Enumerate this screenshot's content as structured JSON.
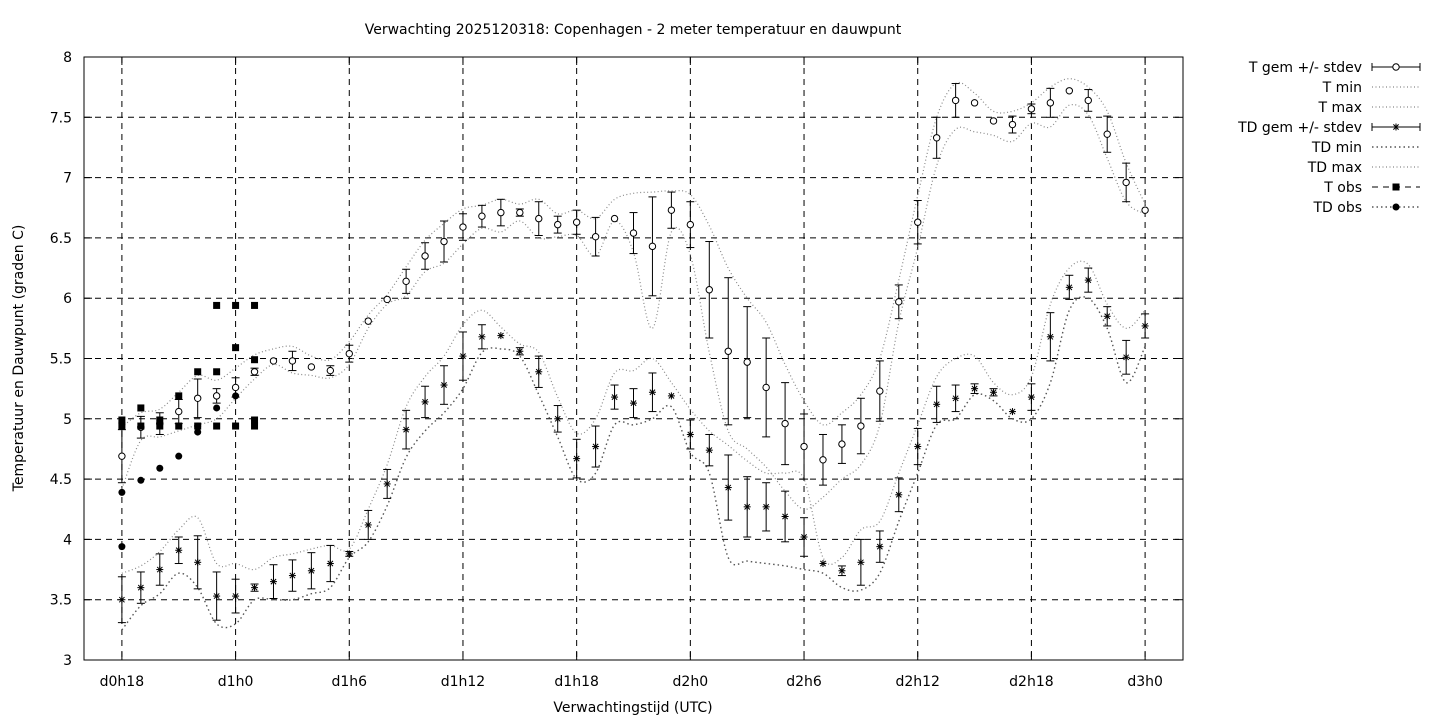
{
  "chart_data": {
    "type": "line",
    "title": "Verwachting 2025120318: Copenhagen - 2 meter temperatuur en dauwpunt",
    "xlabel": "Verwachtingstijd (UTC)",
    "ylabel": "Temperatuur en Dauwpunt (graden C)",
    "x_unit": "hours since d0h18",
    "xlim": [
      -2,
      56
    ],
    "ylim": [
      3,
      8
    ],
    "xticks": [
      {
        "x": 0,
        "label": "d0h18"
      },
      {
        "x": 6,
        "label": "d1h0"
      },
      {
        "x": 12,
        "label": "d1h6"
      },
      {
        "x": 18,
        "label": "d1h12"
      },
      {
        "x": 24,
        "label": "d1h18"
      },
      {
        "x": 30,
        "label": "d2h0"
      },
      {
        "x": 36,
        "label": "d2h6"
      },
      {
        "x": 42,
        "label": "d2h12"
      },
      {
        "x": 48,
        "label": "d2h18"
      },
      {
        "x": 54,
        "label": "d3h0"
      }
    ],
    "yticks": [
      {
        "y": 3,
        "label": "3"
      },
      {
        "y": 3.5,
        "label": "3.5"
      },
      {
        "y": 4,
        "label": "4"
      },
      {
        "y": 4.5,
        "label": "4.5"
      },
      {
        "y": 5,
        "label": "5"
      },
      {
        "y": 5.5,
        "label": "5.5"
      },
      {
        "y": 6,
        "label": "6"
      },
      {
        "y": 6.5,
        "label": "6.5"
      },
      {
        "y": 7,
        "label": "7"
      },
      {
        "y": 7.5,
        "label": "7.5"
      },
      {
        "y": 8,
        "label": "8"
      }
    ],
    "grid": true,
    "legend_position": "outside-right-top",
    "series": [
      {
        "name": "T gem +/- stdev",
        "x": [
          0,
          1,
          2,
          3,
          4,
          5,
          6,
          7,
          8,
          9,
          10,
          11,
          12,
          13,
          14,
          15,
          16,
          17,
          18,
          19,
          20,
          21,
          22,
          23,
          24,
          25,
          26,
          27,
          28,
          29,
          30,
          31,
          32,
          33,
          34,
          35,
          36,
          37,
          38,
          39,
          40,
          41,
          42,
          43,
          44,
          45,
          46,
          47,
          48,
          49,
          50,
          51,
          52,
          53,
          54
        ],
        "mean": [
          4.69,
          4.93,
          4.96,
          5.06,
          5.17,
          5.19,
          5.26,
          5.39,
          5.48,
          5.48,
          5.43,
          5.4,
          5.54,
          5.81,
          5.99,
          6.14,
          6.35,
          6.47,
          6.59,
          6.68,
          6.71,
          6.71,
          6.66,
          6.61,
          6.63,
          6.51,
          6.66,
          6.54,
          6.43,
          6.73,
          6.61,
          6.07,
          5.56,
          5.47,
          5.26,
          4.96,
          4.77,
          4.66,
          4.79,
          4.94,
          5.23,
          5.97,
          6.63,
          7.33,
          7.64,
          7.62,
          7.47,
          7.44,
          7.57,
          7.62,
          7.72,
          7.64,
          7.36,
          6.96,
          6.73
        ],
        "stdev": [
          0.22,
          0.09,
          0.09,
          0.1,
          0.16,
          0.06,
          0.08,
          0.03,
          0.0,
          0.08,
          0.0,
          0.04,
          0.07,
          0.0,
          0.0,
          0.1,
          0.11,
          0.17,
          0.11,
          0.09,
          0.11,
          0.03,
          0.14,
          0.07,
          0.1,
          0.16,
          0.0,
          0.17,
          0.41,
          0.15,
          0.19,
          0.4,
          0.61,
          0.46,
          0.41,
          0.34,
          0.27,
          0.21,
          0.16,
          0.23,
          0.25,
          0.14,
          0.18,
          0.17,
          0.14,
          0.0,
          0.0,
          0.07,
          0.04,
          0.12,
          0.0,
          0.09,
          0.15,
          0.16,
          0.0
        ]
      },
      {
        "name": "T min",
        "x": [
          0,
          1,
          2,
          3,
          4,
          5,
          6,
          7,
          8,
          9,
          10,
          11,
          12,
          13,
          14,
          15,
          16,
          17,
          18,
          19,
          20,
          21,
          22,
          23,
          24,
          25,
          26,
          27,
          28,
          29,
          30,
          31,
          32,
          33,
          34,
          35,
          36,
          37,
          38,
          39,
          40,
          41,
          42,
          43,
          44,
          45,
          46,
          47,
          48,
          49,
          50,
          51,
          52,
          53,
          54
        ],
        "values": [
          4.42,
          4.82,
          4.85,
          4.9,
          4.95,
          5.0,
          5.17,
          5.33,
          5.45,
          5.38,
          5.36,
          5.34,
          5.45,
          5.75,
          5.95,
          6.02,
          6.22,
          6.29,
          6.45,
          6.58,
          6.55,
          6.64,
          6.5,
          6.51,
          6.52,
          6.35,
          6.64,
          6.38,
          5.75,
          6.55,
          6.36,
          5.55,
          4.9,
          4.75,
          4.6,
          4.4,
          4.25,
          4.35,
          4.5,
          4.62,
          4.95,
          5.8,
          6.42,
          7.1,
          7.4,
          7.38,
          7.35,
          7.3,
          7.45,
          7.42,
          7.6,
          7.52,
          7.16,
          6.8,
          6.7
        ]
      },
      {
        "name": "T max",
        "x": [
          0,
          1,
          2,
          3,
          4,
          5,
          6,
          7,
          8,
          9,
          10,
          11,
          12,
          13,
          14,
          15,
          16,
          17,
          18,
          19,
          20,
          21,
          22,
          23,
          24,
          25,
          26,
          27,
          28,
          29,
          30,
          31,
          32,
          33,
          34,
          35,
          36,
          37,
          38,
          39,
          40,
          41,
          42,
          43,
          44,
          45,
          46,
          47,
          48,
          49,
          50,
          51,
          52,
          53,
          54
        ],
        "values": [
          4.93,
          5.05,
          5.08,
          5.22,
          5.36,
          5.32,
          5.42,
          5.53,
          5.58,
          5.6,
          5.52,
          5.49,
          5.64,
          5.86,
          6.03,
          6.26,
          6.48,
          6.62,
          6.74,
          6.77,
          6.82,
          6.78,
          6.82,
          6.7,
          6.73,
          6.66,
          6.82,
          6.87,
          6.88,
          6.89,
          6.86,
          6.6,
          6.25,
          6.0,
          5.8,
          5.45,
          5.15,
          4.95,
          5.05,
          5.2,
          5.5,
          6.15,
          6.85,
          7.5,
          7.78,
          7.7,
          7.55,
          7.55,
          7.62,
          7.75,
          7.82,
          7.75,
          7.55,
          7.12,
          6.78
        ]
      },
      {
        "name": "TD gem +/- stdev",
        "x": [
          0,
          1,
          2,
          3,
          4,
          5,
          6,
          7,
          8,
          9,
          10,
          11,
          12,
          13,
          14,
          15,
          16,
          17,
          18,
          19,
          20,
          21,
          22,
          23,
          24,
          25,
          26,
          27,
          28,
          29,
          30,
          31,
          32,
          33,
          34,
          35,
          36,
          37,
          38,
          39,
          40,
          41,
          42,
          43,
          44,
          45,
          46,
          47,
          48,
          49,
          50,
          51,
          52,
          53,
          54
        ],
        "mean": [
          3.5,
          3.6,
          3.75,
          3.91,
          3.81,
          3.53,
          3.53,
          3.6,
          3.65,
          3.7,
          3.74,
          3.8,
          3.88,
          4.12,
          4.46,
          4.91,
          5.14,
          5.28,
          5.52,
          5.68,
          5.69,
          5.56,
          5.39,
          5.0,
          4.67,
          4.77,
          5.18,
          5.13,
          5.22,
          5.19,
          4.87,
          4.74,
          4.43,
          4.27,
          4.27,
          4.19,
          4.02,
          3.8,
          3.74,
          3.81,
          3.94,
          4.37,
          4.77,
          5.12,
          5.17,
          5.25,
          5.22,
          5.06,
          5.18,
          5.68,
          6.09,
          6.15,
          5.85,
          5.51,
          5.77
        ],
        "stdev": [
          0.19,
          0.13,
          0.13,
          0.11,
          0.22,
          0.2,
          0.14,
          0.03,
          0.14,
          0.13,
          0.15,
          0.15,
          0.02,
          0.12,
          0.12,
          0.16,
          0.13,
          0.16,
          0.2,
          0.1,
          0.0,
          0.03,
          0.13,
          0.11,
          0.16,
          0.17,
          0.1,
          0.12,
          0.16,
          0.0,
          0.12,
          0.13,
          0.27,
          0.25,
          0.2,
          0.21,
          0.16,
          0.0,
          0.04,
          0.19,
          0.13,
          0.14,
          0.15,
          0.15,
          0.11,
          0.04,
          0.03,
          0.0,
          0.11,
          0.2,
          0.1,
          0.1,
          0.08,
          0.14,
          0.1
        ]
      },
      {
        "name": "TD min",
        "x": [
          0,
          1,
          2,
          3,
          4,
          5,
          6,
          7,
          8,
          9,
          10,
          11,
          12,
          13,
          14,
          15,
          16,
          17,
          18,
          19,
          20,
          21,
          22,
          23,
          24,
          25,
          26,
          27,
          28,
          29,
          30,
          31,
          32,
          33,
          34,
          35,
          36,
          37,
          38,
          39,
          40,
          41,
          42,
          43,
          44,
          45,
          46,
          47,
          48,
          49,
          50,
          51,
          52,
          53,
          54
        ],
        "values": [
          3.25,
          3.45,
          3.55,
          3.72,
          3.6,
          3.3,
          3.3,
          3.5,
          3.5,
          3.5,
          3.55,
          3.6,
          3.85,
          3.98,
          4.28,
          4.68,
          4.9,
          5.05,
          5.25,
          5.55,
          5.58,
          5.52,
          5.2,
          4.85,
          4.5,
          4.55,
          4.95,
          4.95,
          5.0,
          5.1,
          4.72,
          4.55,
          3.85,
          3.82,
          3.8,
          3.78,
          3.75,
          3.72,
          3.6,
          3.58,
          3.72,
          4.15,
          4.55,
          4.95,
          5.0,
          5.2,
          5.15,
          5.0,
          5.0,
          5.3,
          5.9,
          6.0,
          5.75,
          5.3,
          5.6
        ]
      },
      {
        "name": "TD max",
        "x": [
          0,
          1,
          2,
          3,
          4,
          5,
          6,
          7,
          8,
          9,
          10,
          11,
          12,
          13,
          14,
          15,
          16,
          17,
          18,
          19,
          20,
          21,
          22,
          23,
          24,
          25,
          26,
          27,
          28,
          29,
          30,
          31,
          32,
          33,
          34,
          35,
          36,
          37,
          38,
          39,
          40,
          41,
          42,
          43,
          44,
          45,
          46,
          47,
          48,
          49,
          50,
          51,
          52,
          53,
          54
        ],
        "values": [
          3.72,
          3.78,
          3.9,
          4.08,
          4.18,
          3.8,
          3.8,
          3.75,
          3.85,
          3.88,
          3.92,
          3.95,
          3.92,
          4.25,
          4.62,
          5.1,
          5.35,
          5.52,
          5.78,
          5.9,
          5.76,
          5.62,
          5.55,
          5.18,
          4.88,
          5.0,
          5.38,
          5.4,
          5.5,
          5.3,
          5.08,
          4.9,
          4.78,
          4.65,
          4.55,
          4.55,
          4.5,
          3.85,
          3.85,
          4.08,
          4.15,
          4.55,
          4.95,
          5.35,
          5.5,
          5.52,
          5.3,
          5.2,
          5.35,
          5.95,
          6.25,
          6.28,
          5.95,
          5.75,
          5.9
        ]
      },
      {
        "name": "T obs",
        "points": [
          [
            0,
            4.94
          ],
          [
            0,
            4.99
          ],
          [
            1,
            4.94
          ],
          [
            1,
            5.09
          ],
          [
            2,
            4.94
          ],
          [
            2,
            4.99
          ],
          [
            3,
            4.94
          ],
          [
            3,
            5.19
          ],
          [
            4,
            4.94
          ],
          [
            4,
            5.39
          ],
          [
            5,
            4.94
          ],
          [
            5,
            5.39
          ],
          [
            5,
            5.94
          ],
          [
            6,
            4.94
          ],
          [
            6,
            5.59
          ],
          [
            6,
            5.94
          ],
          [
            7,
            4.94
          ],
          [
            7,
            4.99
          ],
          [
            7,
            5.49
          ],
          [
            7,
            5.94
          ]
        ]
      },
      {
        "name": "TD obs",
        "points": [
          [
            0,
            4.39
          ],
          [
            0,
            3.94
          ],
          [
            1,
            4.49
          ],
          [
            2,
            4.59
          ],
          [
            3,
            4.69
          ],
          [
            4,
            4.89
          ],
          [
            4,
            4.94
          ],
          [
            5,
            5.09
          ],
          [
            6,
            4.94
          ],
          [
            6,
            5.19
          ],
          [
            7,
            4.99
          ]
        ]
      }
    ]
  }
}
